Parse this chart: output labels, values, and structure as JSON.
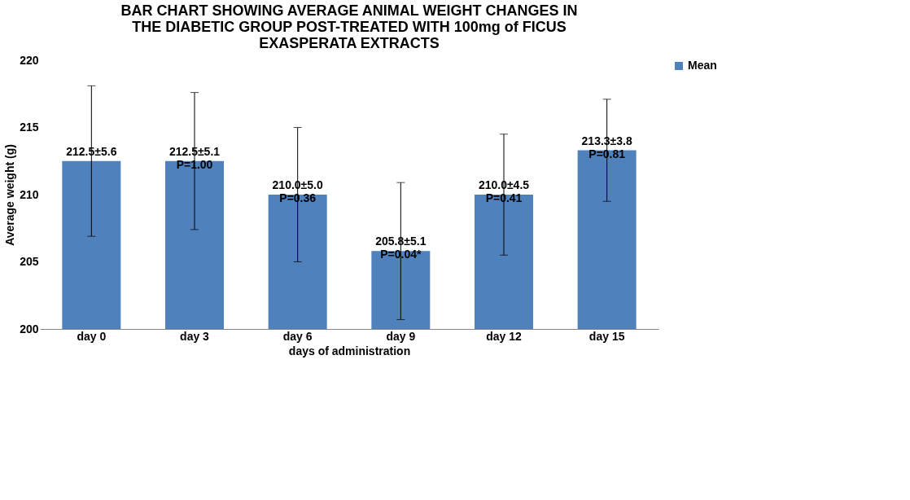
{
  "chart_data": {
    "type": "bar",
    "title": "BAR CHART SHOWING AVERAGE ANIMAL WEIGHT CHANGES IN THE DIABETIC GROUP POST-TREATED WITH 100mg of FICUS EXASPERATA EXTRACTS",
    "xlabel": "days of administration",
    "ylabel": "Average weight (g)",
    "categories": [
      "day 0",
      "day 3",
      "day 6",
      "day 9",
      "day 12",
      "day 15"
    ],
    "series": [
      {
        "name": "Mean",
        "color": "#4f81bd",
        "values": [
          212.5,
          212.5,
          210.0,
          205.8,
          210.0,
          213.3
        ],
        "errors": [
          5.6,
          5.1,
          5.0,
          5.1,
          4.5,
          3.8
        ],
        "value_labels": [
          "212.5±5.6",
          "212.5±5.1\nP=1.00",
          "210.0±5.0\nP=0.36",
          "205.8±5.1\nP=0.04*",
          "210.0±4.5\nP=0.41",
          "213.3±3.8\nP=0.81"
        ]
      }
    ],
    "ylim": [
      200,
      220
    ],
    "yticks": [
      200,
      205,
      210,
      215,
      220
    ],
    "grid": false,
    "legend": "right"
  }
}
